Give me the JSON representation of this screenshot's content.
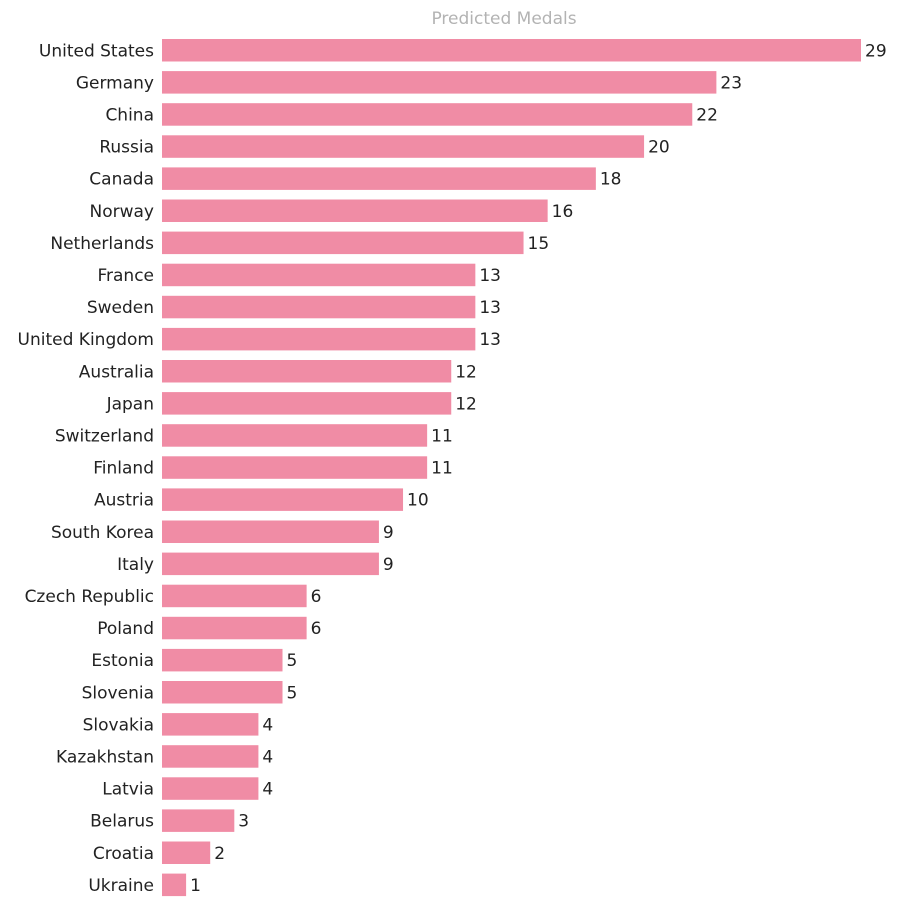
{
  "chart_data": {
    "type": "bar",
    "orientation": "horizontal",
    "title": "Predicted Medals",
    "categories": [
      "United States",
      "Germany",
      "China",
      "Russia",
      "Canada",
      "Norway",
      "Netherlands",
      "France",
      "Sweden",
      "United Kingdom",
      "Australia",
      "Japan",
      "Switzerland",
      "Finland",
      "Austria",
      "South Korea",
      "Italy",
      "Czech Republic",
      "Poland",
      "Estonia",
      "Slovenia",
      "Slovakia",
      "Kazakhstan",
      "Latvia",
      "Belarus",
      "Croatia",
      "Ukraine"
    ],
    "values": [
      29,
      23,
      22,
      20,
      18,
      16,
      15,
      13,
      13,
      13,
      12,
      12,
      11,
      11,
      10,
      9,
      9,
      6,
      6,
      5,
      5,
      4,
      4,
      4,
      3,
      2,
      1
    ],
    "xlim": [
      0,
      29
    ],
    "grid": false,
    "data_labels": true,
    "bar_color": "#f08ca5",
    "xlabel": "",
    "ylabel": ""
  }
}
